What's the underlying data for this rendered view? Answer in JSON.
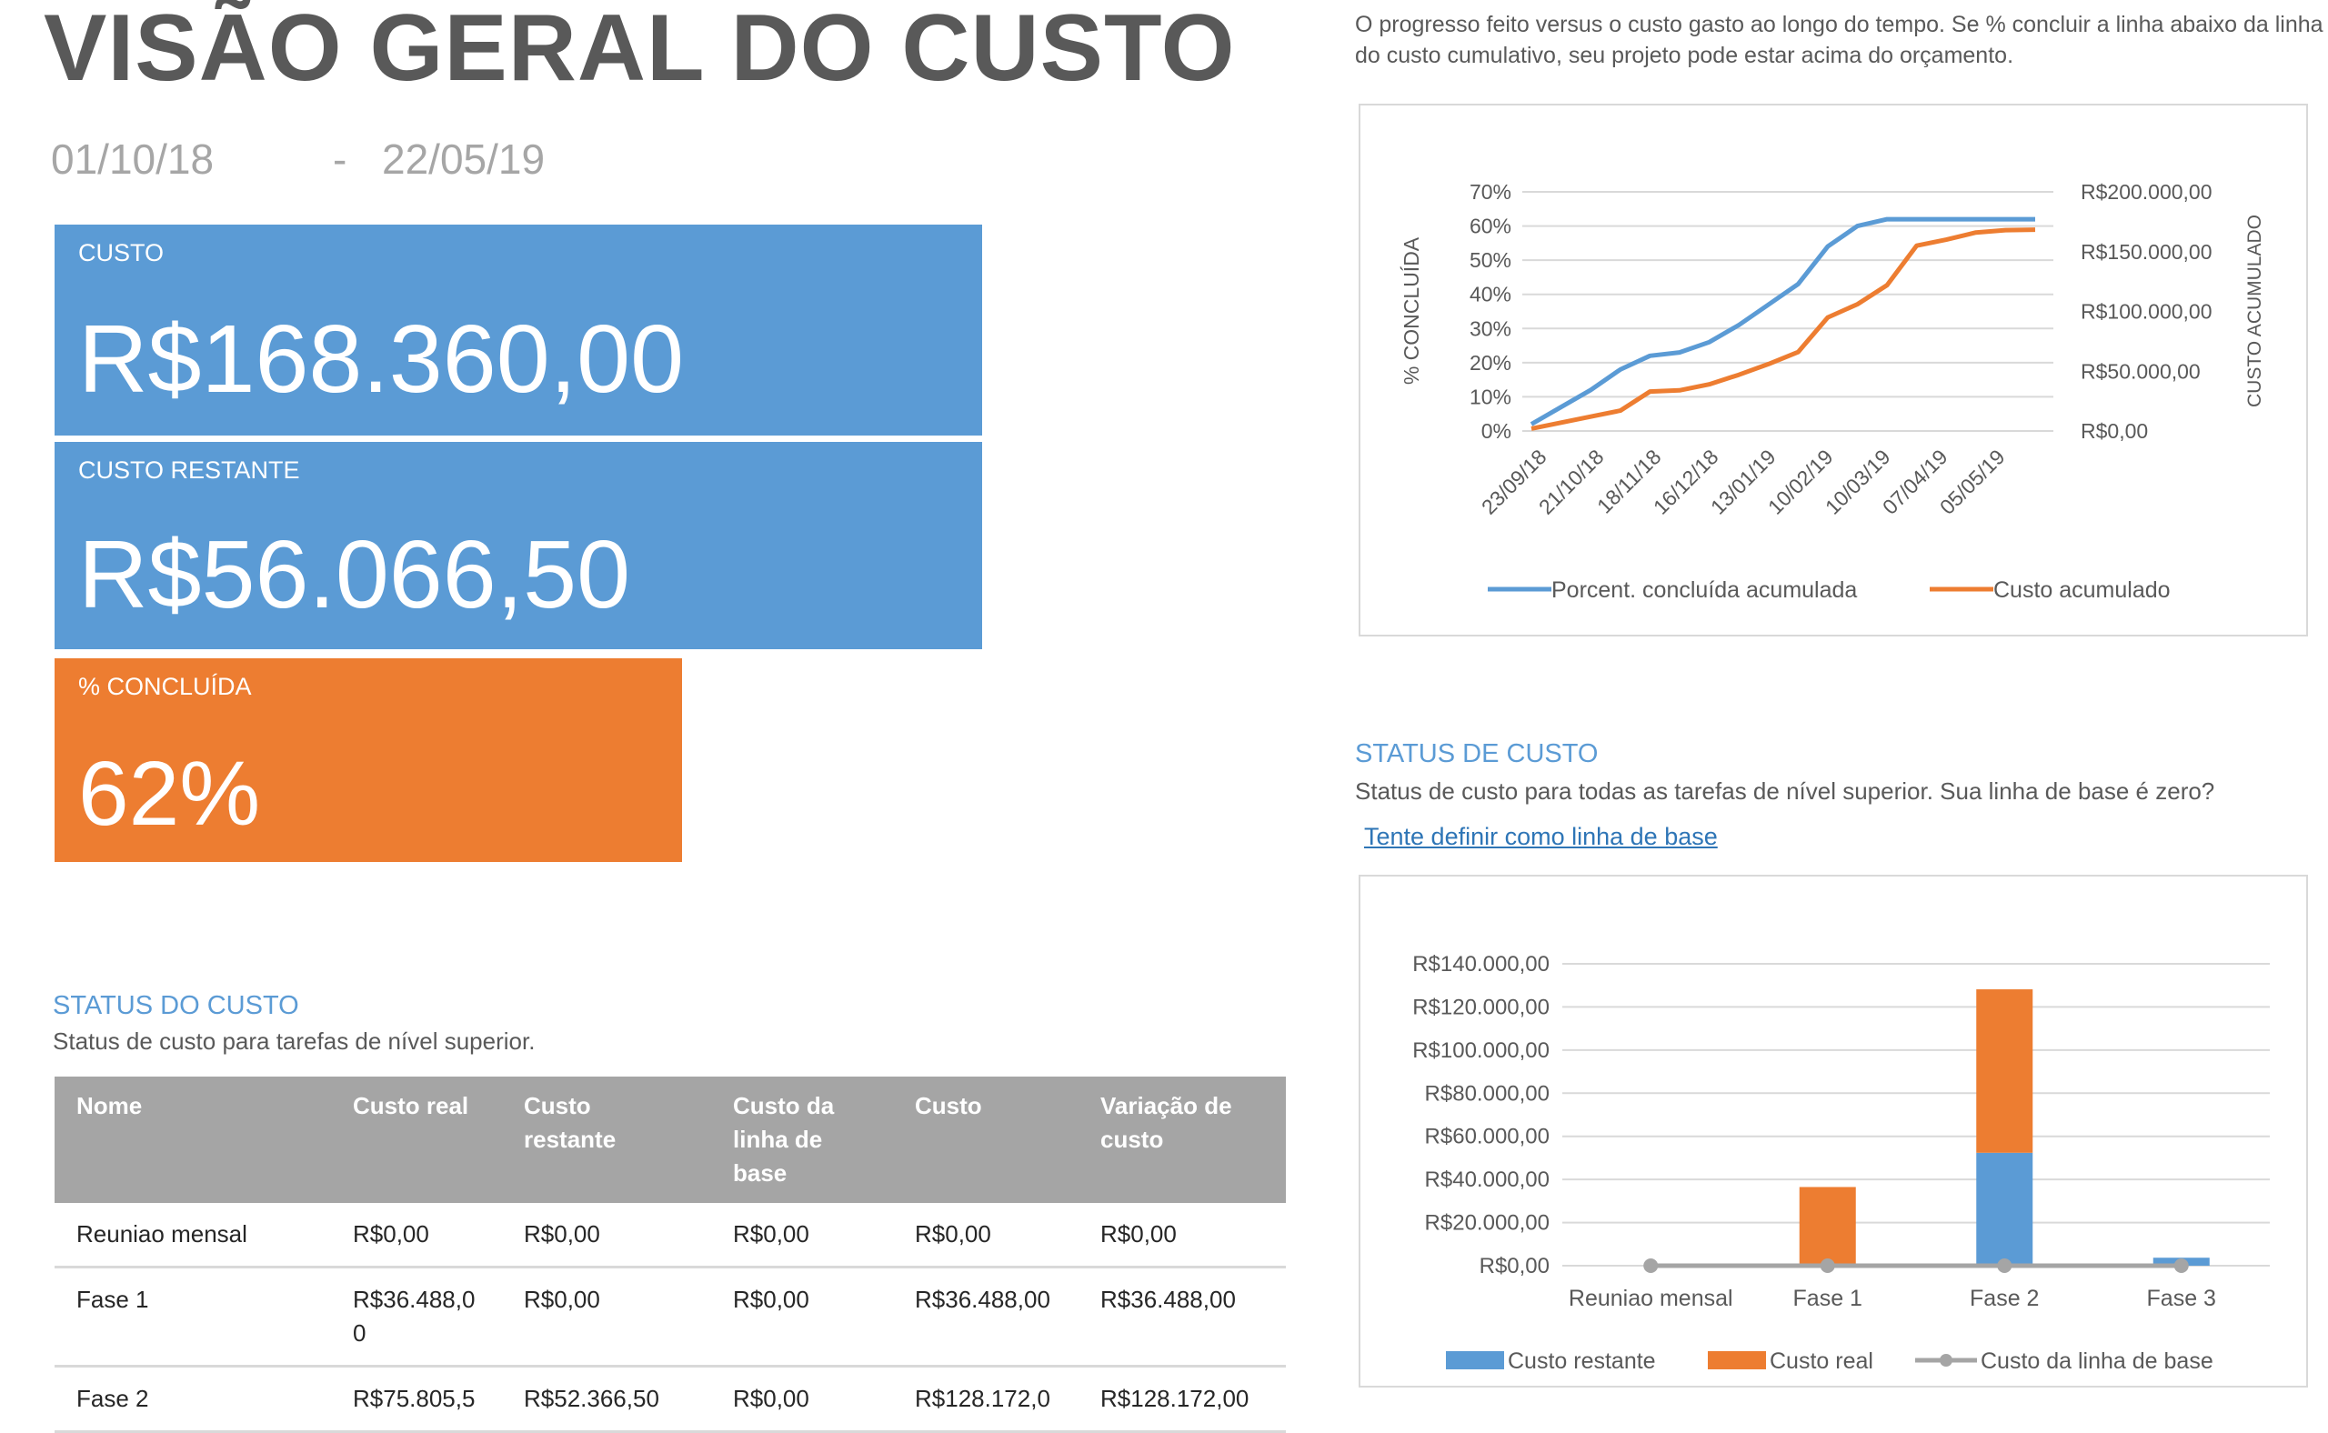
{
  "page": {
    "title": "VISÃO GERAL DO CUSTO",
    "date_start": "01/10/18",
    "date_sep": "-",
    "date_end": "22/05/19"
  },
  "cards": {
    "cost": {
      "label": "CUSTO",
      "value": "R$168.360,00"
    },
    "remaining": {
      "label": "CUSTO RESTANTE",
      "value": "R$56.066,50"
    },
    "complete": {
      "label": "% CONCLUÍDA",
      "value": "62%"
    }
  },
  "right_desc": "O progresso feito versus o custo gasto ao longo do tempo. Se % concluir a linha abaixo da linha do custo cumulativo, seu projeto pode estar acima do orçamento.",
  "status_section": {
    "heading": "STATUS DO CUSTO",
    "subtitle": "Status de custo para tarefas de nível superior."
  },
  "table": {
    "headers": [
      "Nome",
      "Custo real",
      "Custo restante",
      "Custo da linha de base",
      "Custo",
      "Variação de custo"
    ],
    "rows": [
      [
        "Reuniao mensal",
        "R$0,00",
        "R$0,00",
        "R$0,00",
        "R$0,00",
        "R$0,00"
      ],
      [
        "Fase 1",
        "R$36.488,00",
        "R$0,00",
        "R$0,00",
        "R$36.488,00",
        "R$36.488,00"
      ],
      [
        "Fase 2",
        "R$75.805,5",
        "R$52.366,50",
        "R$0,00",
        "R$128.172,0",
        "R$128.172,00"
      ]
    ]
  },
  "status2_section": {
    "heading": "STATUS DE CUSTO",
    "subtitle": "Status de custo para todas as tarefas de nível superior. Sua linha de base é zero?",
    "link": "Tente definir como linha de base"
  },
  "colors": {
    "blue": "#5b9bd5",
    "orange": "#ed7d31",
    "gray": "#a5a5a5"
  },
  "chart_data": [
    {
      "type": "line",
      "ylabel": "% CONCLUÍDA",
      "y2label": "CUSTO ACUMULADO",
      "x_tick_labels": [
        "23/09/18",
        "21/10/18",
        "18/11/18",
        "16/12/18",
        "13/01/19",
        "10/02/19",
        "10/03/19",
        "07/04/19",
        "05/05/19"
      ],
      "y_tick_labels": [
        "0%",
        "10%",
        "20%",
        "30%",
        "40%",
        "50%",
        "60%",
        "70%"
      ],
      "y2_tick_labels": [
        "R$0,00",
        "R$50.000,00",
        "R$100.000,00",
        "R$150.000,00",
        "R$200.000,00"
      ],
      "ylim": [
        0,
        70
      ],
      "y2lim": [
        0,
        200000
      ],
      "x_index_range": [
        0,
        17
      ],
      "series": [
        {
          "name": "Porcent. concluída acumulada",
          "axis": "left",
          "color": "#5b9bd5",
          "values": [
            2,
            7,
            12,
            18,
            22,
            23,
            26,
            31,
            37,
            43,
            54,
            60,
            62,
            62,
            62,
            62,
            62,
            62
          ]
        },
        {
          "name": "Custo acumulado",
          "axis": "right",
          "color": "#ed7d31",
          "values": [
            2000,
            7000,
            12000,
            17000,
            33000,
            34000,
            39000,
            47000,
            56000,
            66000,
            95000,
            106000,
            122000,
            155000,
            160000,
            166000,
            168000,
            168360
          ]
        }
      ],
      "legend": "bottom",
      "grid": true
    },
    {
      "type": "bar",
      "stacked": true,
      "categories": [
        "Reuniao mensal",
        "Fase 1",
        "Fase 2",
        "Fase 3"
      ],
      "y_tick_labels": [
        "R$0,00",
        "R$20.000,00",
        "R$40.000,00",
        "R$60.000,00",
        "R$80.000,00",
        "R$100.000,00",
        "R$120.000,00",
        "R$140.000,00"
      ],
      "ylim": [
        0,
        140000
      ],
      "series": [
        {
          "name": "Custo restante",
          "color": "#5b9bd5",
          "values": [
            0,
            0,
            52366.5,
            3700
          ]
        },
        {
          "name": "Custo real",
          "color": "#ed7d31",
          "values": [
            0,
            36488,
            75805.5,
            0
          ]
        },
        {
          "name": "Custo da linha de base",
          "color": "#a5a5a5",
          "type": "line",
          "values": [
            0,
            0,
            0,
            0
          ]
        }
      ],
      "legend": "bottom",
      "grid": true
    }
  ]
}
